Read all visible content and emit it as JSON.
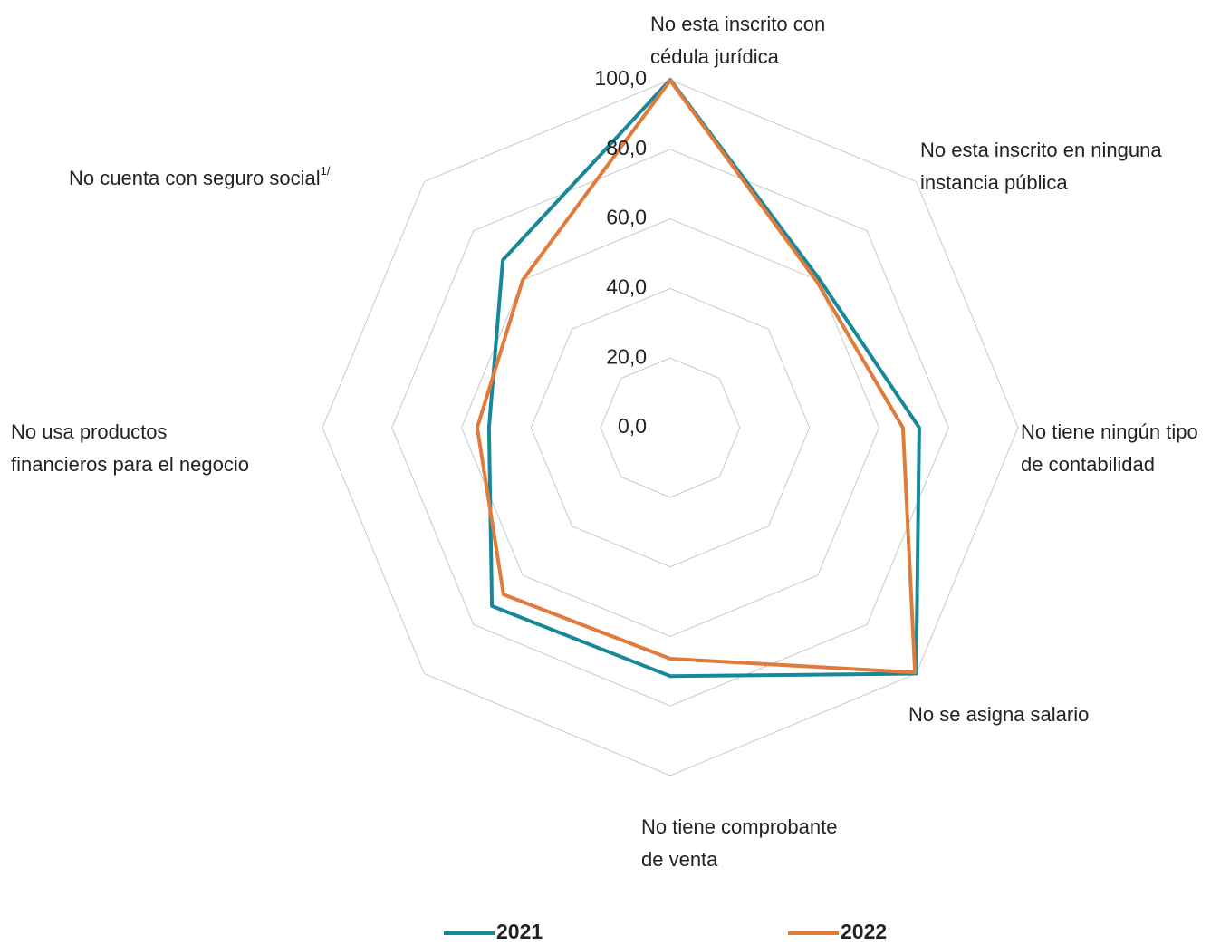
{
  "chart_data": {
    "type": "radar",
    "categories": [
      "No esta inscrito con\ncédula jurídica",
      "No esta inscrito en ninguna\ninstancia pública",
      "No tiene ningún tipo\nde contabilidad",
      "No se asigna salario",
      "No tiene comprobante\nde venta",
      null,
      "No usa productos\nfinancieros para el negocio",
      "No cuenta con seguro social"
    ],
    "category_superscripts": [
      null,
      null,
      null,
      null,
      null,
      null,
      null,
      "1/"
    ],
    "series": [
      {
        "name": "2021",
        "color": "#17889a",
        "values": [
          100,
          60.5,
          71.6,
          100,
          71.4,
          72.5,
          52.1,
          68.1
        ]
      },
      {
        "name": "2022",
        "color": "#e07b3c",
        "values": [
          99.8,
          59.5,
          66.9,
          99.5,
          66.4,
          67.8,
          55.5,
          60.0
        ]
      }
    ],
    "ylim": [
      0,
      100
    ],
    "yticks": [
      {
        "value": 0,
        "label": "0,0"
      },
      {
        "value": 20,
        "label": "20,0"
      },
      {
        "value": 40,
        "label": "40,0"
      },
      {
        "value": 60,
        "label": "60,0"
      },
      {
        "value": 80,
        "label": "80,0"
      },
      {
        "value": 100,
        "label": "100,0"
      }
    ],
    "grid": true
  }
}
